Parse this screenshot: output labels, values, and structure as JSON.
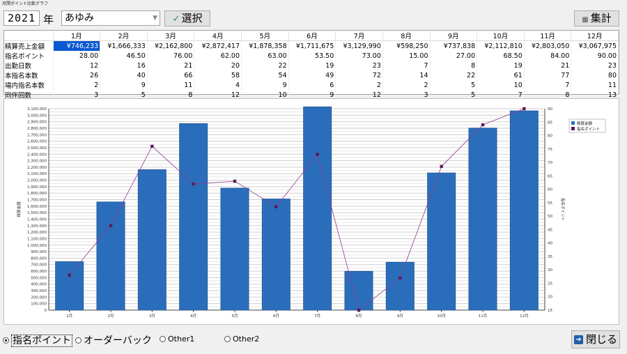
{
  "window": {
    "title": "月間ポイント比較グラフ"
  },
  "toolbar": {
    "year": "2021",
    "year_label": "年",
    "name": "あゆみ",
    "select_label": "選択",
    "total_label": "集計"
  },
  "grid": {
    "months": [
      "1月",
      "2月",
      "3月",
      "4月",
      "5月",
      "6月",
      "7月",
      "8月",
      "9月",
      "10月",
      "11月",
      "12月"
    ],
    "rows": [
      {
        "label": "精算売上金額",
        "values": [
          "¥746,233",
          "¥1,666,333",
          "¥2,162,800",
          "¥2,872,417",
          "¥1,878,358",
          "¥1,711,675",
          "¥3,129,990",
          "¥598,250",
          "¥737,838",
          "¥2,112,810",
          "¥2,803,050",
          "¥3,067,975"
        ]
      },
      {
        "label": "指名ポイント",
        "values": [
          "28.00",
          "46.50",
          "76.00",
          "62.00",
          "63.00",
          "53.50",
          "73.00",
          "15.00",
          "27.00",
          "68.50",
          "84.00",
          "90.00"
        ]
      },
      {
        "label": "出勤日数",
        "values": [
          "12",
          "16",
          "21",
          "20",
          "22",
          "19",
          "23",
          "7",
          "8",
          "19",
          "21",
          "23"
        ]
      },
      {
        "label": "本指名本数",
        "values": [
          "26",
          "40",
          "66",
          "58",
          "54",
          "49",
          "72",
          "14",
          "22",
          "61",
          "77",
          "80"
        ]
      },
      {
        "label": "場内指名本数",
        "values": [
          "2",
          "9",
          "11",
          "4",
          "9",
          "6",
          "2",
          "2",
          "5",
          "10",
          "7",
          "11"
        ]
      },
      {
        "label": "同伴回数",
        "values": [
          "3",
          "5",
          "8",
          "12",
          "10",
          "9",
          "12",
          "3",
          "5",
          "7",
          "8",
          "13"
        ]
      }
    ]
  },
  "chart_data": {
    "type": "bar",
    "categories": [
      "1月",
      "2月",
      "3月",
      "4月",
      "5月",
      "6月",
      "7月",
      "8月",
      "9月",
      "10月",
      "11月",
      "12月"
    ],
    "series": [
      {
        "name": "精算金額",
        "type": "bar",
        "axis": "left",
        "values": [
          746233,
          1666333,
          2162800,
          2872417,
          1878358,
          1711675,
          3129990,
          598250,
          737838,
          2112810,
          2803050,
          3067975
        ]
      },
      {
        "name": "指名ポイント",
        "type": "line",
        "axis": "right",
        "values": [
          28,
          46.5,
          76,
          62,
          63,
          53.5,
          73,
          15,
          27,
          68.5,
          84,
          90
        ]
      }
    ],
    "ylabel": "精算金額",
    "y2label": "指名ポイント",
    "ylim": [
      0,
      3100000
    ],
    "y2lim": [
      15,
      90
    ],
    "legend": "top-right",
    "grid": true,
    "colors": {
      "bar": "#2a6ebb",
      "line": "#8e3a8e",
      "marker": "#5b1a5b"
    }
  },
  "options": {
    "radios": [
      {
        "label": "指名ポイント",
        "checked": true
      },
      {
        "label": "オーダーバック",
        "checked": false
      },
      {
        "label": "Other1",
        "checked": false
      },
      {
        "label": "Other2",
        "checked": false
      }
    ],
    "close_label": "閉じる"
  }
}
